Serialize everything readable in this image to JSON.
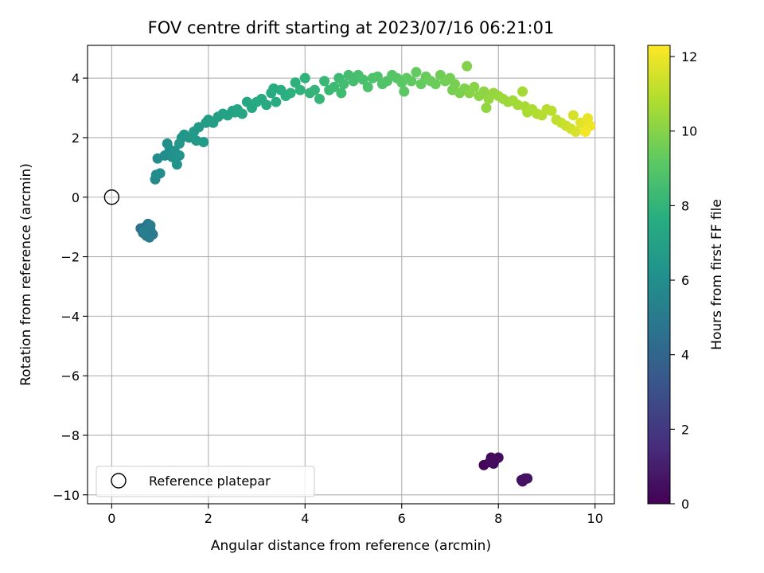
{
  "chart_data": {
    "type": "scatter",
    "title": "FOV centre drift starting at 2023/07/16 06:21:01",
    "xlabel": "Angular distance from reference (arcmin)",
    "ylabel": "Rotation from reference (arcmin)",
    "xlim": [
      -0.5,
      10.4
    ],
    "ylim": [
      -10.3,
      5.1
    ],
    "xticks": [
      0,
      2,
      4,
      6,
      8,
      10
    ],
    "yticks": [
      -10,
      -8,
      -6,
      -4,
      -2,
      0,
      2,
      4
    ],
    "grid": true,
    "legend": {
      "placement": "lower-left",
      "entries": [
        "Reference platepar"
      ]
    },
    "reference_point": {
      "x": 0,
      "y": 0,
      "label": "Reference platepar"
    },
    "colorbar": {
      "label": "Hours from first FF file",
      "range": [
        0,
        12.3
      ],
      "ticks": [
        0,
        2,
        4,
        6,
        8,
        10,
        12
      ],
      "colormap": "viridis"
    },
    "points": [
      [
        7.7,
        -9.0,
        0.15
      ],
      [
        7.85,
        -8.75,
        0.2
      ],
      [
        7.9,
        -8.95,
        0.25
      ],
      [
        7.95,
        -8.8,
        0.3
      ],
      [
        8.0,
        -8.75,
        0.35
      ],
      [
        7.82,
        -8.9,
        0.4
      ],
      [
        8.5,
        -9.55,
        0.45
      ],
      [
        8.55,
        -9.45,
        0.5
      ],
      [
        8.6,
        -9.45,
        0.55
      ],
      [
        8.48,
        -9.5,
        0.6
      ],
      [
        0.6,
        -1.05,
        4.5
      ],
      [
        0.65,
        -1.2,
        4.6
      ],
      [
        0.7,
        -1.0,
        4.7
      ],
      [
        0.75,
        -0.9,
        4.8
      ],
      [
        0.8,
        -1.1,
        4.9
      ],
      [
        0.78,
        -1.35,
        5.0
      ],
      [
        0.85,
        -1.25,
        5.05
      ],
      [
        0.72,
        -1.3,
        5.1
      ],
      [
        0.8,
        -0.95,
        5.15
      ],
      [
        0.68,
        -1.15,
        5.2
      ],
      [
        0.9,
        0.6,
        5.8
      ],
      [
        0.92,
        0.75,
        5.85
      ],
      [
        1.0,
        0.8,
        5.9
      ],
      [
        0.95,
        1.3,
        5.95
      ],
      [
        1.1,
        1.4,
        6.0
      ],
      [
        1.15,
        1.8,
        6.05
      ],
      [
        1.2,
        1.6,
        6.1
      ],
      [
        1.25,
        1.35,
        6.15
      ],
      [
        1.3,
        1.55,
        6.2
      ],
      [
        1.35,
        1.1,
        6.25
      ],
      [
        1.4,
        1.4,
        6.3
      ],
      [
        1.45,
        2.0,
        6.35
      ],
      [
        1.5,
        2.1,
        6.4
      ],
      [
        1.4,
        1.8,
        6.45
      ],
      [
        1.6,
        2.0,
        6.5
      ],
      [
        1.7,
        2.2,
        6.55
      ],
      [
        1.75,
        1.9,
        6.6
      ],
      [
        1.8,
        2.35,
        6.65
      ],
      [
        1.9,
        1.85,
        6.7
      ],
      [
        1.95,
        2.5,
        6.75
      ],
      [
        2.0,
        2.6,
        6.8
      ],
      [
        2.1,
        2.5,
        6.85
      ],
      [
        2.2,
        2.7,
        6.9
      ],
      [
        2.3,
        2.8,
        6.95
      ],
      [
        2.4,
        2.75,
        7.0
      ],
      [
        2.5,
        2.9,
        7.05
      ],
      [
        2.55,
        2.85,
        7.1
      ],
      [
        2.6,
        2.95,
        7.15
      ],
      [
        2.7,
        2.8,
        7.2
      ],
      [
        2.8,
        3.2,
        7.25
      ],
      [
        2.9,
        3.0,
        7.3
      ],
      [
        3.0,
        3.2,
        7.4
      ],
      [
        3.1,
        3.3,
        7.45
      ],
      [
        3.2,
        3.1,
        7.5
      ],
      [
        3.3,
        3.5,
        7.55
      ],
      [
        3.35,
        3.65,
        7.6
      ],
      [
        3.4,
        3.2,
        7.65
      ],
      [
        3.5,
        3.6,
        7.7
      ],
      [
        3.6,
        3.4,
        7.75
      ],
      [
        3.7,
        3.5,
        7.8
      ],
      [
        3.8,
        3.85,
        7.85
      ],
      [
        3.9,
        3.6,
        7.9
      ],
      [
        4.0,
        4.0,
        7.95
      ],
      [
        4.1,
        3.5,
        8.0
      ],
      [
        4.2,
        3.6,
        8.05
      ],
      [
        4.3,
        3.3,
        8.1
      ],
      [
        4.4,
        3.9,
        8.2
      ],
      [
        4.5,
        3.6,
        8.25
      ],
      [
        4.6,
        3.7,
        8.3
      ],
      [
        4.7,
        4.0,
        8.35
      ],
      [
        4.75,
        3.5,
        8.4
      ],
      [
        4.8,
        3.8,
        8.45
      ],
      [
        4.9,
        4.1,
        8.5
      ],
      [
        5.0,
        3.9,
        8.55
      ],
      [
        5.1,
        4.1,
        8.6
      ],
      [
        5.2,
        3.95,
        8.65
      ],
      [
        5.3,
        3.7,
        8.7
      ],
      [
        5.4,
        4.0,
        8.75
      ],
      [
        5.5,
        4.05,
        8.8
      ],
      [
        5.6,
        3.8,
        8.85
      ],
      [
        5.7,
        3.9,
        8.9
      ],
      [
        5.8,
        4.1,
        8.95
      ],
      [
        5.9,
        4.0,
        9.0
      ],
      [
        6.0,
        3.85,
        9.1
      ],
      [
        6.05,
        3.55,
        9.15
      ],
      [
        6.1,
        4.0,
        9.2
      ],
      [
        6.2,
        3.9,
        9.25
      ],
      [
        6.3,
        4.2,
        9.3
      ],
      [
        6.4,
        3.8,
        9.35
      ],
      [
        6.5,
        4.05,
        9.4
      ],
      [
        6.6,
        3.9,
        9.45
      ],
      [
        6.7,
        3.8,
        9.5
      ],
      [
        6.8,
        4.1,
        9.55
      ],
      [
        6.9,
        3.9,
        9.6
      ],
      [
        7.0,
        4.0,
        9.65
      ],
      [
        7.05,
        3.6,
        9.7
      ],
      [
        7.1,
        3.8,
        9.75
      ],
      [
        7.2,
        3.5,
        9.8
      ],
      [
        7.3,
        3.65,
        9.85
      ],
      [
        7.35,
        4.4,
        9.9
      ],
      [
        7.4,
        3.5,
        10.0
      ],
      [
        7.5,
        3.7,
        10.05
      ],
      [
        7.6,
        3.4,
        10.1
      ],
      [
        7.7,
        3.55,
        10.15
      ],
      [
        7.75,
        3.0,
        10.2
      ],
      [
        7.8,
        3.3,
        10.25
      ],
      [
        7.9,
        3.5,
        10.3
      ],
      [
        8.0,
        3.4,
        10.35
      ],
      [
        8.1,
        3.3,
        10.4
      ],
      [
        8.2,
        3.2,
        10.45
      ],
      [
        8.3,
        3.25,
        10.5
      ],
      [
        8.4,
        3.1,
        10.55
      ],
      [
        8.5,
        3.55,
        10.6
      ],
      [
        8.55,
        3.05,
        10.65
      ],
      [
        8.6,
        2.85,
        10.7
      ],
      [
        8.7,
        2.95,
        10.75
      ],
      [
        8.8,
        2.8,
        10.8
      ],
      [
        8.9,
        2.75,
        10.9
      ],
      [
        9.0,
        2.95,
        10.95
      ],
      [
        9.1,
        2.9,
        11.0
      ],
      [
        9.2,
        2.6,
        11.1
      ],
      [
        9.3,
        2.5,
        11.2
      ],
      [
        9.4,
        2.4,
        11.3
      ],
      [
        9.5,
        2.3,
        11.4
      ],
      [
        9.55,
        2.75,
        11.5
      ],
      [
        9.6,
        2.2,
        11.6
      ],
      [
        9.7,
        2.5,
        11.7
      ],
      [
        9.8,
        2.35,
        11.8
      ],
      [
        9.85,
        2.65,
        11.9
      ],
      [
        9.9,
        2.4,
        12.0
      ],
      [
        9.8,
        2.2,
        12.1
      ]
    ]
  }
}
